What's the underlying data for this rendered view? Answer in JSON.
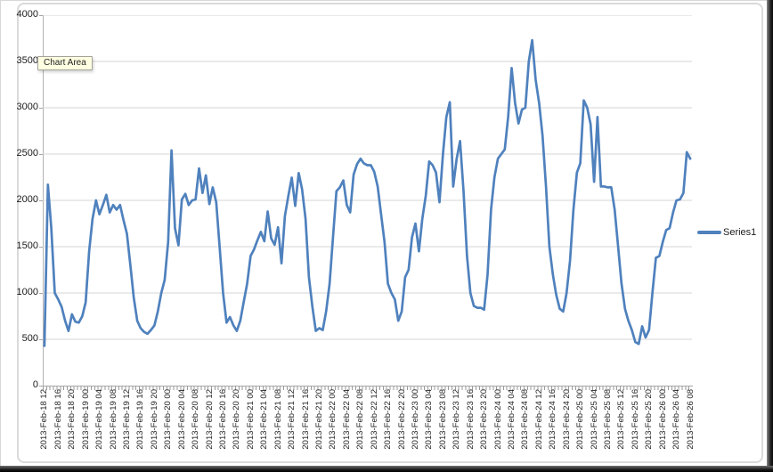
{
  "tooltip": {
    "label": "Chart Area"
  },
  "legend": {
    "label": "Series1"
  },
  "colors": {
    "series_line": "#4F81BD",
    "gridline": "#d6d6d6",
    "axis": "#a6a6a6",
    "text": "#1a1a1a",
    "tooltip_bg": "#ffffe1"
  },
  "chart_data": {
    "type": "line",
    "title": "",
    "xlabel": "",
    "ylabel": "",
    "ylim": [
      0,
      4000
    ],
    "y_tick_step": 500,
    "y_tick_labels": [
      "0",
      "500",
      "1000",
      "1500",
      "2000",
      "2500",
      "3000",
      "3500",
      "4000"
    ],
    "grid": "horizontal",
    "legend_position": "right",
    "x_tick_every_points": 4,
    "x_tick_labels": [
      "2013-Feb-18 12",
      "2013-Feb-18 16",
      "2013-Feb-18 20",
      "2013-Feb-19 00",
      "2013-Feb-19 04",
      "2013-Feb-19 08",
      "2013-Feb-19 12",
      "2013-Feb-19 16",
      "2013-Feb-19 20",
      "2013-Feb-20 00",
      "2013-Feb-20 04",
      "2013-Feb-20 08",
      "2013-Feb-20 12",
      "2013-Feb-20 16",
      "2013-Feb-20 20",
      "2013-Feb-21 00",
      "2013-Feb-21 04",
      "2013-Feb-21 08",
      "2013-Feb-21 12",
      "2013-Feb-21 16",
      "2013-Feb-21 20",
      "2013-Feb-22 00",
      "2013-Feb-22 04",
      "2013-Feb-22 08",
      "2013-Feb-22 12",
      "2013-Feb-22 16",
      "2013-Feb-22 20",
      "2013-Feb-23 00",
      "2013-Feb-23 04",
      "2013-Feb-23 08",
      "2013-Feb-23 12",
      "2013-Feb-23 16",
      "2013-Feb-23 20",
      "2013-Feb-24 00",
      "2013-Feb-24 04",
      "2013-Feb-24 08",
      "2013-Feb-24 12",
      "2013-Feb-24 16",
      "2013-Feb-24 20",
      "2013-Feb-25 00",
      "2013-Feb-25 04",
      "2013-Feb-25 08",
      "2013-Feb-25 12",
      "2013-Feb-25 16",
      "2013-Feb-25 20",
      "2013-Feb-26 00",
      "2013-Feb-26 04",
      "2013-Feb-26 08"
    ],
    "series": [
      {
        "name": "Series1",
        "color": "#4F81BD",
        "interval": "hourly",
        "values": [
          430,
          2170,
          1700,
          1000,
          930,
          850,
          700,
          590,
          770,
          690,
          680,
          750,
          900,
          1450,
          1800,
          2000,
          1850,
          1950,
          2060,
          1870,
          1950,
          1900,
          1950,
          1790,
          1640,
          1300,
          950,
          700,
          620,
          580,
          560,
          600,
          650,
          800,
          1000,
          1140,
          1550,
          2540,
          1700,
          1515,
          2010,
          2070,
          1950,
          2000,
          2010,
          2345,
          2080,
          2270,
          1960,
          2140,
          1980,
          1500,
          1000,
          680,
          740,
          650,
          590,
          700,
          900,
          1100,
          1400,
          1470,
          1570,
          1660,
          1560,
          1880,
          1590,
          1520,
          1710,
          1320,
          1830,
          2050,
          2245,
          1940,
          2295,
          2120,
          1800,
          1170,
          850,
          590,
          620,
          600,
          800,
          1100,
          1600,
          2100,
          2140,
          2215,
          1950,
          1870,
          2280,
          2390,
          2450,
          2400,
          2380,
          2380,
          2310,
          2150,
          1850,
          1550,
          1100,
          1000,
          930,
          700,
          800,
          1170,
          1250,
          1600,
          1750,
          1450,
          1800,
          2050,
          2420,
          2380,
          2300,
          1980,
          2500,
          2900,
          3060,
          2150,
          2450,
          2640,
          2100,
          1400,
          1000,
          860,
          840,
          840,
          820,
          1200,
          1900,
          2250,
          2450,
          2500,
          2550,
          2900,
          3430,
          3050,
          2830,
          2980,
          3000,
          3500,
          3730,
          3300,
          3050,
          2700,
          2150,
          1500,
          1200,
          980,
          830,
          800,
          1000,
          1350,
          1900,
          2300,
          2400,
          3080,
          3000,
          2820,
          2200,
          2900,
          2150,
          2150,
          2140,
          2140,
          1900,
          1500,
          1100,
          830,
          700,
          600,
          470,
          450,
          640,
          520,
          600,
          1000,
          1380,
          1400,
          1550,
          1680,
          1700,
          1870,
          2000,
          2010,
          2080,
          2520,
          2450
        ]
      }
    ]
  }
}
